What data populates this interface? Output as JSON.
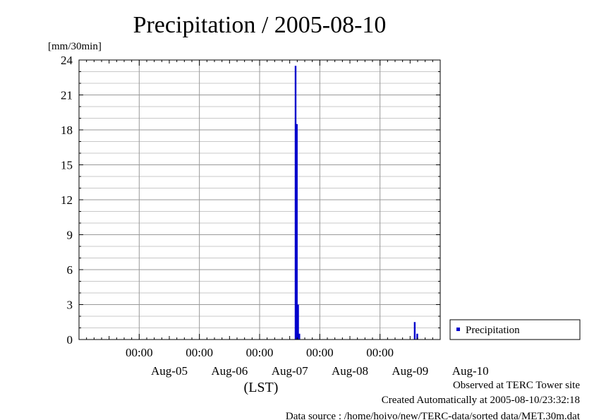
{
  "chart_data": {
    "type": "bar",
    "title": "Precipitation / 2005-08-10",
    "ylabel": "[mm/30min]",
    "xlabel": "(LST)",
    "ylim": [
      0,
      24
    ],
    "yticks": [
      "0",
      "3",
      "6",
      "9",
      "12",
      "15",
      "18",
      "21",
      "24"
    ],
    "x_time_labels": [
      "00:00",
      "00:00",
      "00:00",
      "00:00",
      "00:00"
    ],
    "x_date_labels": [
      "Aug-05",
      "Aug-06",
      "Aug-07",
      "Aug-08",
      "Aug-09",
      "Aug-10"
    ],
    "x_range_days": [
      4.0,
      10.0
    ],
    "grid": true,
    "legend_position": "right",
    "series": [
      {
        "name": "Precipitation",
        "color": "#0000cc",
        "points": [
          {
            "t": "2005-08-07 14:00",
            "value": 23.5
          },
          {
            "t": "2005-08-07 14:30",
            "value": 18.5
          },
          {
            "t": "2005-08-07 15:00",
            "value": 3.0
          },
          {
            "t": "2005-08-07 15:30",
            "value": 0.5
          },
          {
            "t": "2005-08-09 13:30",
            "value": 1.5
          },
          {
            "t": "2005-08-09 14:30",
            "value": 0.5
          }
        ]
      }
    ]
  },
  "footer": {
    "line1": "Observed at TERC Tower site",
    "line2": "Created Automatically at 2005-08-10/23:32:18",
    "line3": "Data source : /home/hoivo/new/TERC-data/sorted  data/MET.30m.dat"
  }
}
